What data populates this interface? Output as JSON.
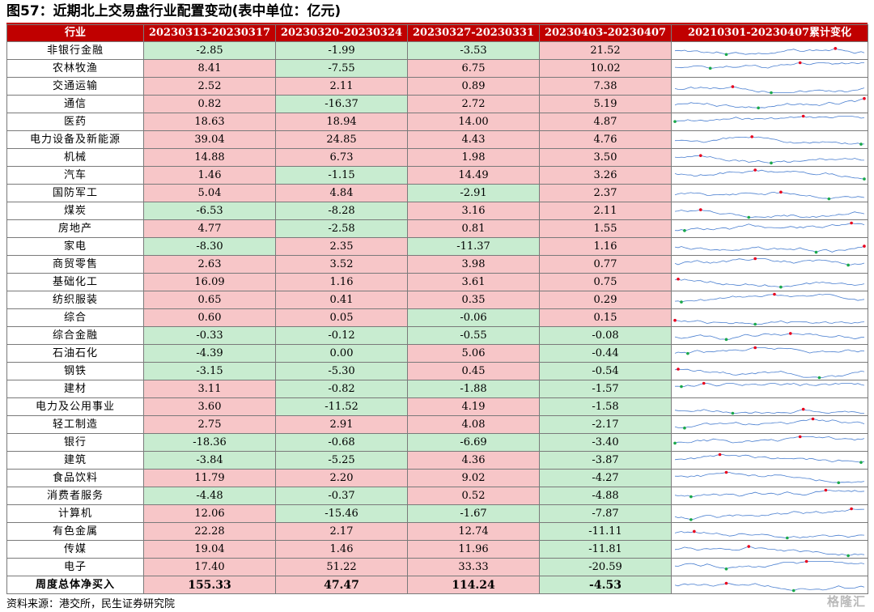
{
  "title": "图57：近期北上交易盘行业配置变动(表中单位：亿元)",
  "headers": [
    "行业",
    "20230313-20230317",
    "20230320-20230324",
    "20230327-20230331",
    "20230403-20230407",
    "20210301-20230407累计变化"
  ],
  "rows": [
    {
      "industry": "非银行金融",
      "values": [
        "-2.85",
        "-1.99",
        "-3.53",
        "21.52"
      ]
    },
    {
      "industry": "农林牧渔",
      "values": [
        "8.41",
        "-7.55",
        "6.75",
        "10.02"
      ]
    },
    {
      "industry": "交通运输",
      "values": [
        "2.52",
        "2.11",
        "0.89",
        "7.38"
      ]
    },
    {
      "industry": "通信",
      "values": [
        "0.82",
        "-16.37",
        "2.72",
        "5.19"
      ]
    },
    {
      "industry": "医药",
      "values": [
        "18.63",
        "18.94",
        "14.00",
        "4.87"
      ]
    },
    {
      "industry": "电力设备及新能源",
      "values": [
        "39.04",
        "24.85",
        "4.43",
        "4.76"
      ]
    },
    {
      "industry": "机械",
      "values": [
        "14.88",
        "6.73",
        "1.98",
        "3.50"
      ]
    },
    {
      "industry": "汽车",
      "values": [
        "1.46",
        "-1.15",
        "14.49",
        "3.26"
      ]
    },
    {
      "industry": "国防军工",
      "values": [
        "5.04",
        "4.84",
        "-2.91",
        "2.37"
      ]
    },
    {
      "industry": "煤炭",
      "values": [
        "-6.53",
        "-8.28",
        "3.16",
        "2.11"
      ]
    },
    {
      "industry": "房地产",
      "values": [
        "4.77",
        "-2.58",
        "0.81",
        "1.55"
      ]
    },
    {
      "industry": "家电",
      "values": [
        "-8.30",
        "2.35",
        "-11.37",
        "1.16"
      ]
    },
    {
      "industry": "商贸零售",
      "values": [
        "2.63",
        "3.52",
        "3.98",
        "0.77"
      ]
    },
    {
      "industry": "基础化工",
      "values": [
        "16.09",
        "1.16",
        "3.61",
        "0.75"
      ]
    },
    {
      "industry": "纺织服装",
      "values": [
        "0.65",
        "0.41",
        "0.35",
        "0.29"
      ]
    },
    {
      "industry": "综合",
      "values": [
        "0.60",
        "0.05",
        "-0.06",
        "0.15"
      ]
    },
    {
      "industry": "综合金融",
      "values": [
        "-0.33",
        "-0.12",
        "-0.55",
        "-0.08"
      ]
    },
    {
      "industry": "石油石化",
      "values": [
        "-4.39",
        "0.00",
        "5.06",
        "-0.44"
      ]
    },
    {
      "industry": "钢铁",
      "values": [
        "-3.15",
        "-5.30",
        "0.45",
        "-0.54"
      ]
    },
    {
      "industry": "建材",
      "values": [
        "3.11",
        "-0.82",
        "-1.88",
        "-1.57"
      ]
    },
    {
      "industry": "电力及公用事业",
      "values": [
        "3.60",
        "-11.52",
        "4.19",
        "-1.58"
      ]
    },
    {
      "industry": "轻工制造",
      "values": [
        "2.75",
        "2.91",
        "4.08",
        "-2.17"
      ]
    },
    {
      "industry": "银行",
      "values": [
        "-18.36",
        "-0.68",
        "-6.69",
        "-3.40"
      ]
    },
    {
      "industry": "建筑",
      "values": [
        "-3.84",
        "-5.25",
        "4.36",
        "-3.87"
      ]
    },
    {
      "industry": "食品饮料",
      "values": [
        "11.79",
        "2.20",
        "9.02",
        "-4.27"
      ]
    },
    {
      "industry": "消费者服务",
      "values": [
        "-4.48",
        "-0.37",
        "0.52",
        "-4.88"
      ]
    },
    {
      "industry": "计算机",
      "values": [
        "12.06",
        "-15.46",
        "-1.67",
        "-7.87"
      ]
    },
    {
      "industry": "有色金属",
      "values": [
        "22.28",
        "2.17",
        "12.74",
        "-11.11"
      ]
    },
    {
      "industry": "传媒",
      "values": [
        "19.04",
        "1.46",
        "11.96",
        "-11.81"
      ]
    },
    {
      "industry": "电子",
      "values": [
        "17.40",
        "51.22",
        "33.33",
        "-20.59"
      ]
    }
  ],
  "total": {
    "industry": "周度总体净买入",
    "values": [
      "155.33",
      "47.47",
      "114.24",
      "-4.53"
    ]
  },
  "sparkline_colors": {
    "line": "#4a7fd0",
    "max": "#e8001c",
    "min": "#1aa84a"
  },
  "cell_colors": {
    "positive": "#f7c6c8",
    "negative": "#c8ecd0",
    "header": "#c00000"
  },
  "footer": "资料来源：港交所，民生证券研究院",
  "watermark": "格隆汇"
}
